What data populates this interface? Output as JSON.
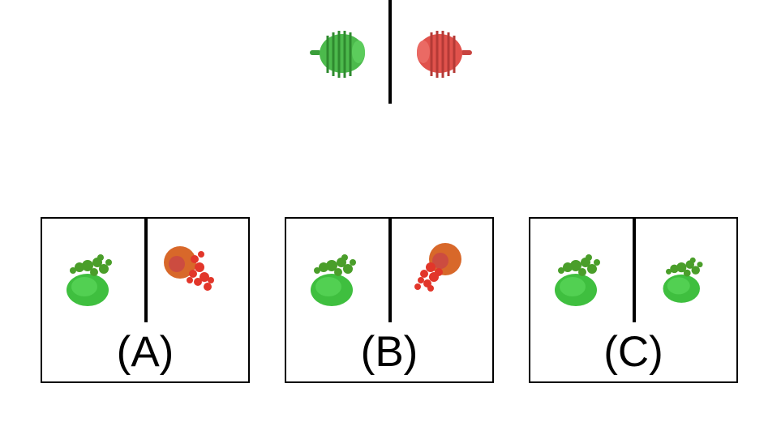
{
  "prompt": {
    "left_object": {
      "color": "#43b043",
      "icon": "green-coil-object"
    },
    "right_object": {
      "color": "#e0524c",
      "icon": "red-coil-object"
    }
  },
  "options": [
    {
      "label": "(A)",
      "left": {
        "icon": "green-plant-cluster",
        "color": "#3fbf3f"
      },
      "right": {
        "icon": "red-plant-cluster",
        "color": "#e2362a"
      }
    },
    {
      "label": "(B)",
      "left": {
        "icon": "green-plant-cluster",
        "color": "#3fbf3f"
      },
      "right": {
        "icon": "red-plant-cluster",
        "color": "#e2362a"
      }
    },
    {
      "label": "(C)",
      "left": {
        "icon": "green-plant-cluster",
        "color": "#3fbf3f"
      },
      "right": {
        "icon": "green-plant-cluster",
        "color": "#3fbf3f"
      }
    }
  ]
}
